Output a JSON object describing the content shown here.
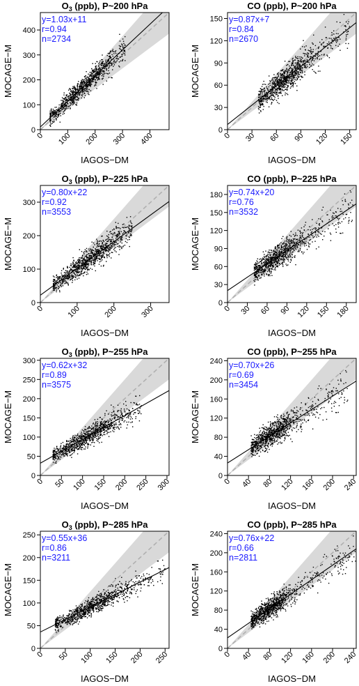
{
  "figure": {
    "colors": {
      "stats_text": "#1a1aff",
      "points": "#000000",
      "fit_line": "#000000",
      "ref_band": "#d9d9d9",
      "ref_line": "#b0b0b0"
    }
  },
  "chart_data": [
    {
      "type": "scatter",
      "species": "O",
      "species_sub": "3",
      "pressure": "200",
      "title_rest": " (ppb), P~200 hPa",
      "xlabel": "IAGOS−DM",
      "ylabel": "MOCAGE−M",
      "xlim": [
        0,
        470
      ],
      "ylim": [
        0,
        470
      ],
      "xticks": [
        0,
        100,
        200,
        300,
        400
      ],
      "yticks": [
        0,
        100,
        200,
        300,
        400
      ],
      "fit": {
        "slope": 1.03,
        "intercept": 11,
        "r": 0.94,
        "n": 2734
      },
      "stats": [
        "y=1.03x+11",
        "r=0.94",
        "n=2734"
      ],
      "cloud": {
        "x_range": [
          35,
          310
        ],
        "center_x": 150,
        "spread_y": 22
      }
    },
    {
      "type": "scatter",
      "species": "CO",
      "species_sub": "",
      "pressure": "200",
      "title_rest": " (ppb), P~200 hPa",
      "xlabel": "IAGOS−DM",
      "ylabel": "MOCAGE−M",
      "xlim": [
        0,
        158
      ],
      "ylim": [
        0,
        158
      ],
      "xticks": [
        0,
        30,
        60,
        90,
        120,
        150
      ],
      "yticks": [
        0,
        30,
        60,
        90,
        120,
        150
      ],
      "fit": {
        "slope": 0.87,
        "intercept": 7,
        "r": 0.84,
        "n": 2670
      },
      "stats": [
        "y=0.87x+7",
        "r=0.84",
        "n=2670"
      ],
      "cloud": {
        "x_range": [
          38,
          150
        ],
        "center_x": 70,
        "spread_y": 10
      }
    },
    {
      "type": "scatter",
      "species": "O",
      "species_sub": "3",
      "pressure": "225",
      "title_rest": " (ppb), P~225 hPa",
      "xlabel": "IAGOS−DM",
      "ylabel": "MOCAGE−M",
      "xlim": [
        0,
        350
      ],
      "ylim": [
        0,
        350
      ],
      "xticks": [
        0,
        100,
        200,
        300
      ],
      "yticks": [
        0,
        100,
        200,
        300
      ],
      "fit": {
        "slope": 0.8,
        "intercept": 22,
        "r": 0.92,
        "n": 3553
      },
      "stats": [
        "y=0.80x+22",
        "r=0.92",
        "n=3553"
      ],
      "cloud": {
        "x_range": [
          35,
          250
        ],
        "center_x": 130,
        "spread_y": 18
      }
    },
    {
      "type": "scatter",
      "species": "CO",
      "species_sub": "",
      "pressure": "225",
      "title_rest": " (ppb), P~225 hPa",
      "xlabel": "IAGOS−DM",
      "ylabel": "MOCAGE−M",
      "xlim": [
        0,
        195
      ],
      "ylim": [
        0,
        195
      ],
      "xticks": [
        0,
        30,
        60,
        90,
        120,
        150,
        180
      ],
      "yticks": [
        0,
        30,
        60,
        90,
        120,
        150,
        180
      ],
      "fit": {
        "slope": 0.74,
        "intercept": 20,
        "r": 0.76,
        "n": 3532
      },
      "stats": [
        "y=0.74x+20",
        "r=0.76",
        "n=3532"
      ],
      "cloud": {
        "x_range": [
          40,
          190
        ],
        "center_x": 75,
        "spread_y": 12
      }
    },
    {
      "type": "scatter",
      "species": "O",
      "species_sub": "3",
      "pressure": "255",
      "title_rest": " (ppb), P~255 hPa",
      "xlabel": "IAGOS−DM",
      "ylabel": "MOCAGE−M",
      "xlim": [
        0,
        305
      ],
      "ylim": [
        0,
        305
      ],
      "xticks": [
        0,
        50,
        100,
        150,
        200,
        250,
        300
      ],
      "yticks": [
        0,
        50,
        100,
        150,
        200,
        250,
        300
      ],
      "fit": {
        "slope": 0.62,
        "intercept": 32,
        "r": 0.89,
        "n": 3575
      },
      "stats": [
        "y=0.62x+32",
        "r=0.89",
        "n=3575"
      ],
      "cloud": {
        "x_range": [
          30,
          240
        ],
        "center_x": 110,
        "spread_y": 14
      }
    },
    {
      "type": "scatter",
      "species": "CO",
      "species_sub": "",
      "pressure": "255",
      "title_rest": " (ppb), P~255 hPa",
      "xlabel": "IAGOS−DM",
      "ylabel": "MOCAGE−M",
      "xlim": [
        0,
        245
      ],
      "ylim": [
        0,
        245
      ],
      "xticks": [
        0,
        40,
        80,
        120,
        160,
        200,
        240
      ],
      "yticks": [
        0,
        40,
        80,
        120,
        160,
        200,
        240
      ],
      "fit": {
        "slope": 0.7,
        "intercept": 26,
        "r": 0.69,
        "n": 3454
      },
      "stats": [
        "y=0.70x+26",
        "r=0.69",
        "n=3454"
      ],
      "cloud": {
        "x_range": [
          45,
          230
        ],
        "center_x": 85,
        "spread_y": 15
      }
    },
    {
      "type": "scatter",
      "species": "O",
      "species_sub": "3",
      "pressure": "285",
      "title_rest": " (ppb), P~285 hPa",
      "xlabel": "IAGOS−DM",
      "ylabel": "MOCAGE−M",
      "xlim": [
        0,
        258
      ],
      "ylim": [
        0,
        258
      ],
      "xticks": [
        0,
        50,
        100,
        150,
        200,
        250
      ],
      "yticks": [
        0,
        50,
        100,
        150,
        200,
        250
      ],
      "fit": {
        "slope": 0.55,
        "intercept": 36,
        "r": 0.86,
        "n": 3211
      },
      "stats": [
        "y=0.55x+36",
        "r=0.86",
        "n=3211"
      ],
      "cloud": {
        "x_range": [
          30,
          250
        ],
        "center_x": 100,
        "spread_y": 11
      }
    },
    {
      "type": "scatter",
      "species": "CO",
      "species_sub": "",
      "pressure": "285",
      "title_rest": " (ppb), P~285 hPa",
      "xlabel": "IAGOS−DM",
      "ylabel": "MOCAGE−M",
      "xlim": [
        0,
        245
      ],
      "ylim": [
        0,
        245
      ],
      "xticks": [
        0,
        40,
        80,
        120,
        160,
        200,
        240
      ],
      "yticks": [
        0,
        40,
        80,
        120,
        160,
        200,
        240
      ],
      "fit": {
        "slope": 0.76,
        "intercept": 22,
        "r": 0.66,
        "n": 2811
      },
      "stats": [
        "y=0.76x+22",
        "r=0.66",
        "n=2811"
      ],
      "cloud": {
        "x_range": [
          45,
          245
        ],
        "center_x": 80,
        "spread_y": 13
      }
    }
  ]
}
